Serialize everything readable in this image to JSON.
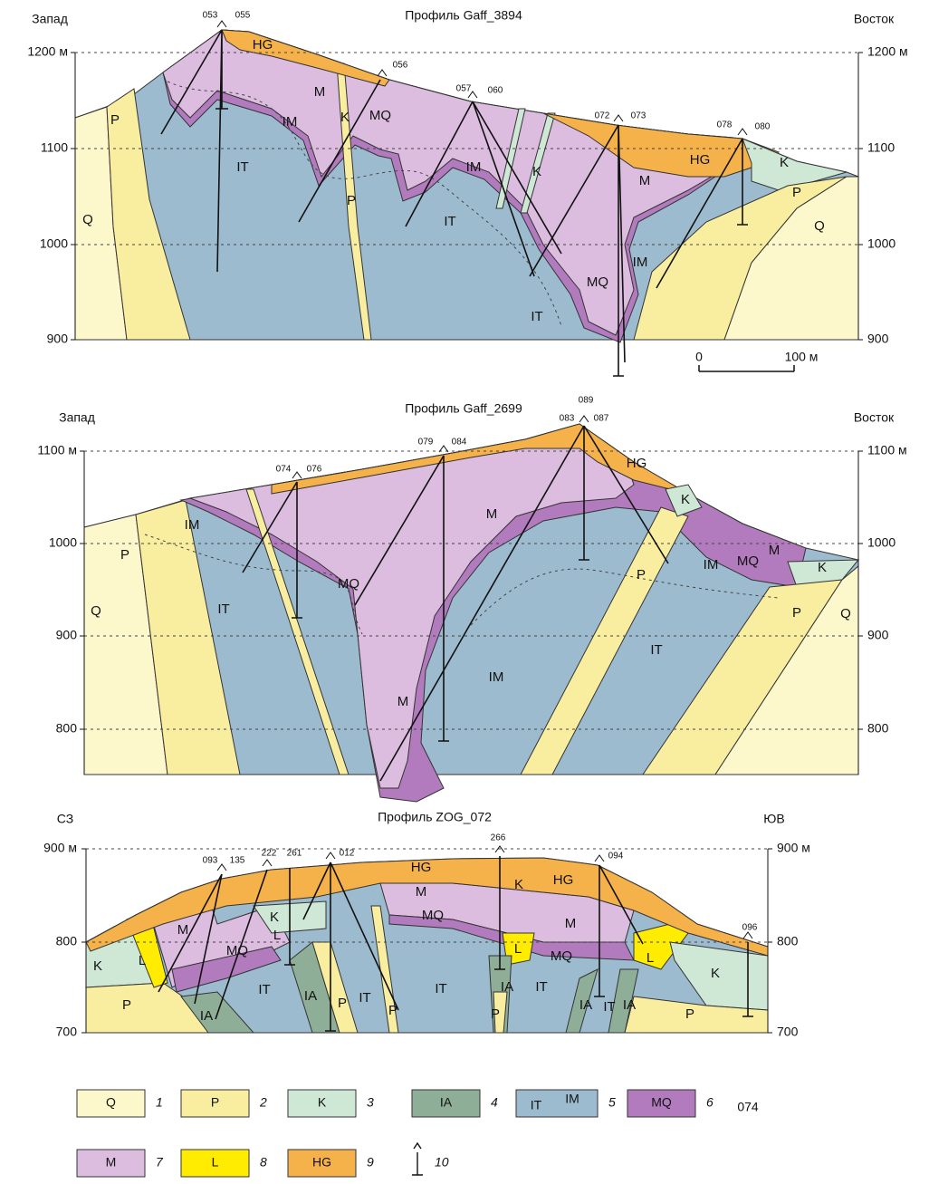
{
  "profiles": [
    {
      "title": "Профиль Gaff_3894",
      "left_direction": "Запад",
      "right_direction": "Восток",
      "elevations_left": [
        "1200 м",
        "1100",
        "1000",
        "900"
      ],
      "elevations_right": [
        "1200 м",
        "1100",
        "1000",
        "900"
      ],
      "boreholes": [
        "053",
        "055",
        "056",
        "057",
        "060",
        "072",
        "073",
        "078",
        "080"
      ],
      "units": [
        "HG",
        "P",
        "M",
        "IM",
        "K",
        "MQ",
        "IT",
        "Q",
        "P",
        "IT",
        "IM",
        "K",
        "M",
        "HG",
        "K",
        "P",
        "Q",
        "IM",
        "MQ",
        "IT"
      ]
    },
    {
      "title": "Профиль Gaff_2699",
      "left_direction": "Запад",
      "right_direction": "Восток",
      "elevations_left": [
        "1100 м",
        "1000",
        "900",
        "800"
      ],
      "elevations_right": [
        "1100 м",
        "1000",
        "900",
        "800"
      ],
      "boreholes": [
        "074",
        "076",
        "079",
        "084",
        "089",
        "083",
        "087"
      ],
      "units": [
        "HG",
        "K",
        "IM",
        "P",
        "MQ",
        "M",
        "Q",
        "IT",
        "P",
        "IM",
        "MQ",
        "M",
        "K",
        "P",
        "Q",
        "IM",
        "IT",
        "M"
      ]
    },
    {
      "title": "Профиль ZOG_072",
      "left_direction": "СЗ",
      "right_direction": "ЮВ",
      "elevations_left": [
        "900 м",
        "800",
        "700"
      ],
      "elevations_right": [
        "900 м",
        "800",
        "700"
      ],
      "boreholes": [
        "093",
        "135",
        "222",
        "261",
        "012",
        "266",
        "094",
        "096"
      ],
      "units": [
        "HG",
        "M",
        "K",
        "HG",
        "M",
        "K",
        "MQ",
        "L",
        "L",
        "M",
        "MQ",
        "K",
        "L",
        "MQ",
        "L",
        "K",
        "IT",
        "IA",
        "IT",
        "IT",
        "IA",
        "IT",
        "P",
        "P",
        "P",
        "IA",
        "IA",
        "IT",
        "IA",
        "P",
        "P"
      ]
    }
  ],
  "scale_bar": {
    "start": "0",
    "end": "100 м"
  },
  "legend": [
    {
      "codes": [
        "Q"
      ],
      "number": "1"
    },
    {
      "codes": [
        "P"
      ],
      "number": "2"
    },
    {
      "codes": [
        "K"
      ],
      "number": "3"
    },
    {
      "codes": [
        "IA"
      ],
      "number": "4"
    },
    {
      "codes": [
        "IT",
        "IM"
      ],
      "number": "5"
    },
    {
      "codes": [
        "MQ"
      ],
      "number": "6"
    },
    {
      "codes": [
        "M"
      ],
      "number": "7"
    },
    {
      "codes": [
        "L"
      ],
      "number": "8"
    },
    {
      "codes": [
        "HG"
      ],
      "number": "9"
    },
    {
      "codes": [],
      "number": "10"
    }
  ],
  "legend_note": "074"
}
